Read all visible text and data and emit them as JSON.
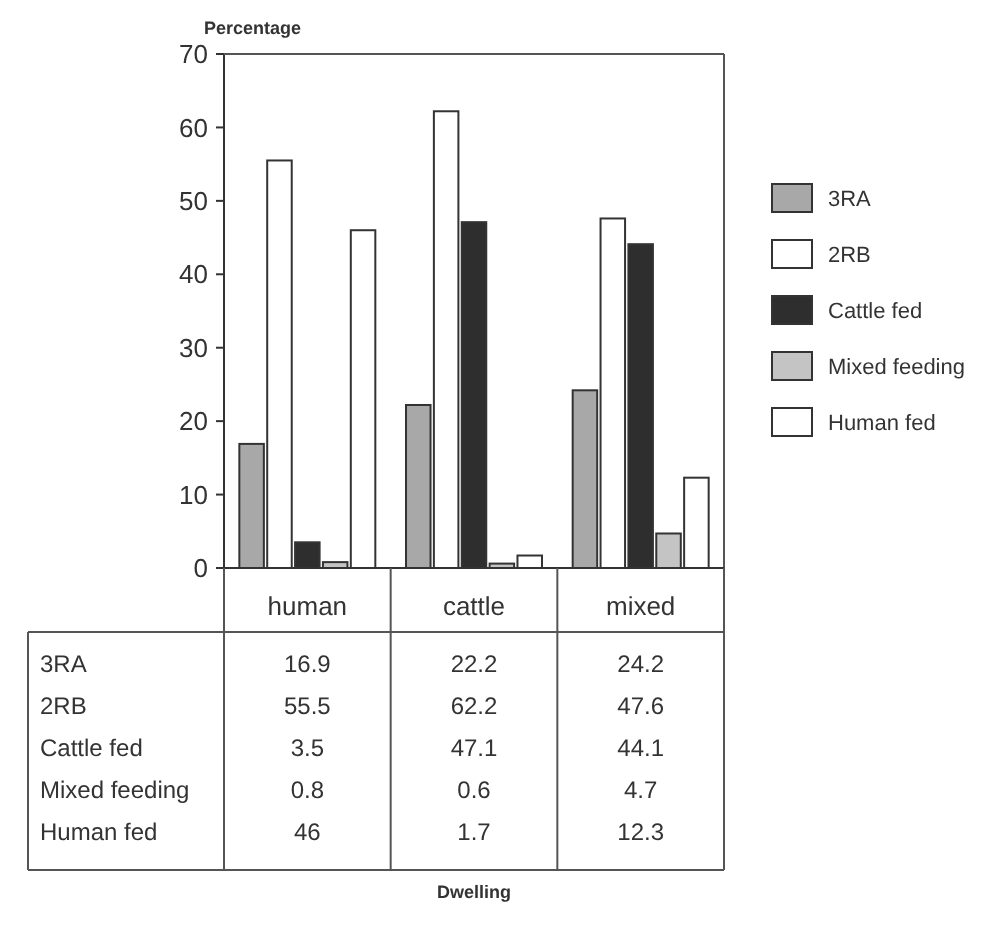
{
  "chart_data": {
    "type": "bar",
    "ylabel": "Percentage",
    "annotations": [
      "Dwelling"
    ],
    "categories": [
      "human",
      "cattle",
      "mixed"
    ],
    "series": [
      {
        "name": "3RA",
        "color": "#a8a8a8",
        "values": [
          16.9,
          22.2,
          24.2
        ]
      },
      {
        "name": "2RB",
        "color": "#ffffff",
        "values": [
          55.5,
          62.2,
          47.6
        ]
      },
      {
        "name": "Cattle fed",
        "color": "#2e2e2e",
        "values": [
          3.5,
          47.1,
          44.1
        ]
      },
      {
        "name": "Mixed feeding",
        "color": "#c4c4c4",
        "values": [
          0.8,
          0.6,
          4.7
        ]
      },
      {
        "name": "Human fed",
        "color": "#ffffff",
        "values": [
          46,
          1.7,
          12.3
        ]
      }
    ],
    "ylim": [
      0,
      70
    ],
    "yticks": [
      0,
      10,
      20,
      30,
      40,
      50,
      60,
      70
    ],
    "legend": "right",
    "data_labels": true
  }
}
